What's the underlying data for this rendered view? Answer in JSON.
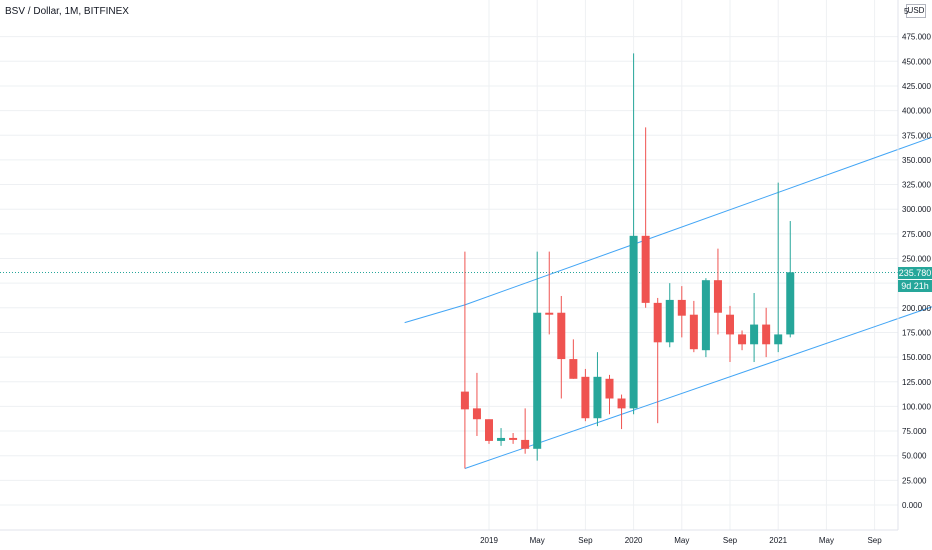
{
  "header": {
    "title": "BSV / Dollar, 1M, BITFINEX",
    "currency": "USD"
  },
  "price_axis_partial_top_label": "5",
  "price_badges": {
    "last_price": "235.780",
    "countdown": "9d 21h"
  },
  "colors": {
    "up": "#26a69a",
    "down": "#ef5350",
    "channel": "#42a5f5",
    "last_price_line": "#26a69a",
    "grid": "#eef0f3"
  },
  "chart_data": {
    "type": "candlestick",
    "title": "BSV / Dollar, 1M, BITFINEX",
    "xlabel": "",
    "ylabel": "",
    "ylim": [
      -15,
      520
    ],
    "y_ticks": [
      "0.000",
      "25.000",
      "50.000",
      "75.000",
      "100.000",
      "125.000",
      "150.000",
      "175.000",
      "200.000",
      "225.000",
      "250.000",
      "275.000",
      "300.000",
      "325.000",
      "350.000",
      "375.000",
      "400.000",
      "425.000",
      "450.000",
      "475.000"
    ],
    "x_ticks": [
      {
        "label": "2019",
        "month": "2019-01"
      },
      {
        "label": "May",
        "month": "2019-05"
      },
      {
        "label": "Sep",
        "month": "2019-09"
      },
      {
        "label": "2020",
        "month": "2020-01"
      },
      {
        "label": "May",
        "month": "2020-05"
      },
      {
        "label": "Sep",
        "month": "2020-09"
      },
      {
        "label": "2021",
        "month": "2021-01"
      },
      {
        "label": "May",
        "month": "2021-05"
      },
      {
        "label": "Sep",
        "month": "2021-09"
      }
    ],
    "candles": [
      {
        "month": "2018-11",
        "open": 115,
        "high": 257,
        "low": 37,
        "close": 97
      },
      {
        "month": "2018-12",
        "open": 98,
        "high": 134,
        "low": 70,
        "close": 87
      },
      {
        "month": "2019-01",
        "open": 87,
        "high": 87,
        "low": 62,
        "close": 65
      },
      {
        "month": "2019-02",
        "open": 65,
        "high": 78,
        "low": 60,
        "close": 68
      },
      {
        "month": "2019-03",
        "open": 68,
        "high": 73,
        "low": 62,
        "close": 66
      },
      {
        "month": "2019-04",
        "open": 66,
        "high": 98,
        "low": 52,
        "close": 57
      },
      {
        "month": "2019-05",
        "open": 57,
        "high": 257,
        "low": 45,
        "close": 195
      },
      {
        "month": "2019-06",
        "open": 195,
        "high": 257,
        "low": 173,
        "close": 193
      },
      {
        "month": "2019-07",
        "open": 195,
        "high": 212,
        "low": 108,
        "close": 148
      },
      {
        "month": "2019-08",
        "open": 148,
        "high": 168,
        "low": 128,
        "close": 128
      },
      {
        "month": "2019-09",
        "open": 130,
        "high": 138,
        "low": 85,
        "close": 88
      },
      {
        "month": "2019-10",
        "open": 88,
        "high": 155,
        "low": 80,
        "close": 130
      },
      {
        "month": "2019-11",
        "open": 128,
        "high": 132,
        "low": 92,
        "close": 108
      },
      {
        "month": "2019-12",
        "open": 108,
        "high": 112,
        "low": 77,
        "close": 98
      },
      {
        "month": "2020-01",
        "open": 98,
        "high": 458,
        "low": 92,
        "close": 273
      },
      {
        "month": "2020-02",
        "open": 273,
        "high": 383,
        "low": 200,
        "close": 205
      },
      {
        "month": "2020-03",
        "open": 205,
        "high": 210,
        "low": 83,
        "close": 165
      },
      {
        "month": "2020-04",
        "open": 165,
        "high": 225,
        "low": 160,
        "close": 208
      },
      {
        "month": "2020-05",
        "open": 208,
        "high": 222,
        "low": 170,
        "close": 192
      },
      {
        "month": "2020-06",
        "open": 193,
        "high": 207,
        "low": 155,
        "close": 158
      },
      {
        "month": "2020-07",
        "open": 157,
        "high": 230,
        "low": 150,
        "close": 228
      },
      {
        "month": "2020-08",
        "open": 228,
        "high": 260,
        "low": 173,
        "close": 195
      },
      {
        "month": "2020-09",
        "open": 193,
        "high": 202,
        "low": 145,
        "close": 173
      },
      {
        "month": "2020-10",
        "open": 173,
        "high": 177,
        "low": 157,
        "close": 163
      },
      {
        "month": "2020-11",
        "open": 163,
        "high": 215,
        "low": 145,
        "close": 183
      },
      {
        "month": "2020-12",
        "open": 183,
        "high": 200,
        "low": 150,
        "close": 163
      },
      {
        "month": "2021-01",
        "open": 163,
        "high": 327,
        "low": 155,
        "close": 173
      },
      {
        "month": "2021-02",
        "open": 173,
        "high": 288,
        "low": 170,
        "close": 236
      }
    ],
    "channel": {
      "upper": [
        {
          "month": "2018-11",
          "value": 203
        },
        {
          "month": "2022-02",
          "value": 374
        }
      ],
      "lower": [
        {
          "month": "2018-11",
          "value": 37
        },
        {
          "month": "2022-02",
          "value": 202
        }
      ],
      "extension": [
        {
          "month": "2018-06",
          "value": 185
        },
        {
          "month": "2018-11",
          "value": 203
        }
      ]
    },
    "last_price": 235.78,
    "grid": true
  }
}
